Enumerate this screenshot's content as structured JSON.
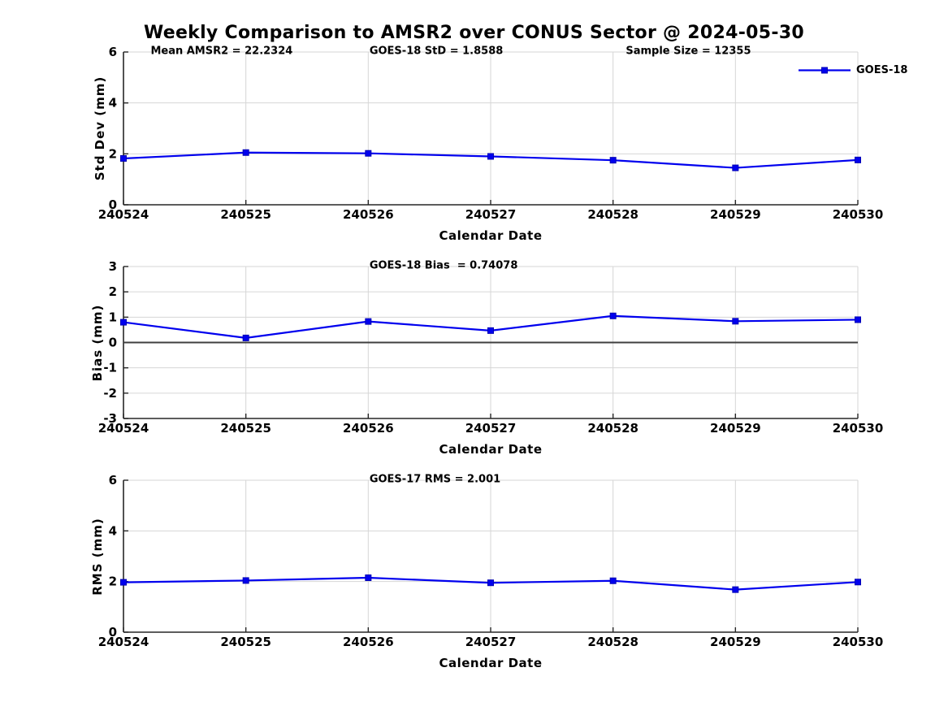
{
  "title": "Weekly Comparison to AMSR2 over CONUS Sector @ 2024-05-30",
  "legend": {
    "label": "GOES-18"
  },
  "colors": {
    "line": "#0000ee",
    "marker_fill": "#0000ee",
    "marker_edge": "#0000b4",
    "grid": "#d6d6d6",
    "axis": "#262626",
    "zero_line": "#3f3f3f",
    "text": "#000000",
    "background": "#ffffff"
  },
  "chart_data": [
    {
      "type": "line",
      "categories": [
        "240524",
        "240525",
        "240526",
        "240527",
        "240528",
        "240529",
        "240530"
      ],
      "series": [
        {
          "name": "GOES-18",
          "values": [
            1.82,
            2.05,
            2.02,
            1.9,
            1.75,
            1.45,
            1.76
          ]
        }
      ],
      "title": "",
      "xlabel": "Calendar Date",
      "ylabel": "Std Dev (mm)",
      "ylim": [
        0,
        6
      ],
      "yticks": [
        0,
        2,
        4,
        6
      ],
      "grid": true,
      "legend_position": "top-right",
      "annotations": [
        "Mean AMSR2 = 22.2324",
        "GOES-18 StD = 1.8588",
        "Sample Size = 12355"
      ]
    },
    {
      "type": "line",
      "categories": [
        "240524",
        "240525",
        "240526",
        "240527",
        "240528",
        "240529",
        "240530"
      ],
      "series": [
        {
          "name": "GOES-18",
          "values": [
            0.8,
            0.18,
            0.83,
            0.47,
            1.05,
            0.84,
            0.9
          ]
        }
      ],
      "title": "",
      "xlabel": "Calendar Date",
      "ylabel": "Bias (mm)",
      "ylim": [
        -3,
        3
      ],
      "yticks": [
        -3,
        -2,
        -1,
        0,
        1,
        2,
        3
      ],
      "grid": true,
      "zero_line": true,
      "annotations": [
        "GOES-18 Bias  = 0.74078"
      ]
    },
    {
      "type": "line",
      "categories": [
        "240524",
        "240525",
        "240526",
        "240527",
        "240528",
        "240529",
        "240530"
      ],
      "series": [
        {
          "name": "GOES-18",
          "values": [
            1.97,
            2.04,
            2.15,
            1.95,
            2.03,
            1.68,
            1.98
          ]
        }
      ],
      "title": "",
      "xlabel": "Calendar Date",
      "ylabel": "RMS (mm)",
      "ylim": [
        0,
        6
      ],
      "yticks": [
        0,
        2,
        4,
        6
      ],
      "grid": true,
      "annotations": [
        "GOES-17 RMS = 2.001"
      ]
    }
  ]
}
